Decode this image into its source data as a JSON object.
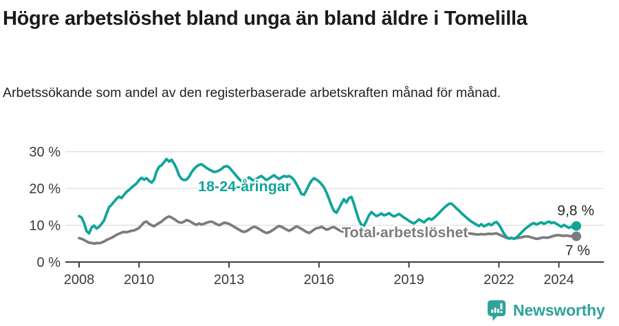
{
  "header": {
    "title": "Högre arbetslöshet bland unga än bland äldre i Tomelilla",
    "subtitle": "Arbetssökande som andel av den registerbaserade arbetskraften månad för månad."
  },
  "chart_data": {
    "type": "line",
    "x_unit": "month",
    "x_start": "2008-01",
    "x_end": "2024-08",
    "ylim": [
      0,
      30
    ],
    "grid": true,
    "y_ticks": [
      {
        "value": 0,
        "label": "0 %"
      },
      {
        "value": 10,
        "label": "10 %"
      },
      {
        "value": 20,
        "label": "20 %"
      },
      {
        "value": 30,
        "label": "30 %"
      }
    ],
    "x_ticks": [
      {
        "year": 2008,
        "label": "2008"
      },
      {
        "year": 2010,
        "label": "2010"
      },
      {
        "year": 2013,
        "label": "2013"
      },
      {
        "year": 2016,
        "label": "2016"
      },
      {
        "year": 2019,
        "label": "2019"
      },
      {
        "year": 2022,
        "label": "2022"
      },
      {
        "year": 2024,
        "label": "2024"
      }
    ],
    "series": [
      {
        "id": "total",
        "name": "Total arbetslöshet",
        "color": "#7c7c7c",
        "end_label": "7 %",
        "values": [
          6.5,
          6.3,
          6.0,
          5.6,
          5.3,
          5.2,
          5.0,
          5.2,
          5.1,
          5.3,
          5.6,
          6.0,
          6.3,
          6.6,
          7.0,
          7.4,
          7.7,
          8.0,
          8.2,
          8.1,
          8.3,
          8.5,
          8.6,
          8.9,
          9.3,
          10.0,
          10.8,
          11.0,
          10.4,
          10.0,
          9.7,
          10.2,
          10.6,
          11.0,
          11.6,
          12.1,
          12.4,
          12.1,
          11.7,
          11.2,
          10.8,
          10.7,
          11.0,
          11.4,
          11.2,
          10.8,
          10.4,
          10.1,
          10.5,
          10.2,
          10.4,
          10.7,
          10.9,
          11.0,
          10.7,
          10.3,
          10.0,
          10.3,
          10.7,
          10.6,
          10.4,
          10.0,
          9.6,
          9.2,
          8.8,
          8.4,
          8.2,
          8.4,
          8.8,
          9.3,
          9.6,
          9.4,
          9.0,
          8.6,
          8.2,
          7.9,
          8.1,
          8.5,
          8.9,
          9.4,
          9.8,
          9.6,
          9.2,
          8.8,
          8.5,
          8.8,
          9.3,
          9.7,
          9.4,
          9.0,
          8.6,
          8.2,
          7.9,
          8.3,
          8.8,
          9.2,
          9.3,
          9.6,
          9.2,
          8.8,
          9.0,
          9.4,
          9.5,
          9.1,
          8.7,
          8.4,
          8.2,
          8.0,
          7.9,
          7.7,
          7.9,
          8.1,
          7.9,
          7.7,
          7.5,
          7.4,
          7.6,
          7.8,
          7.7,
          7.6,
          7.8,
          7.6,
          7.5,
          7.6,
          7.8,
          7.7,
          7.5,
          7.4,
          7.5,
          7.7,
          7.6,
          7.5,
          7.4,
          7.3,
          7.4,
          7.6,
          7.5,
          7.4,
          7.5,
          7.6,
          7.7,
          7.8,
          7.7,
          7.8,
          8.0,
          8.2,
          8.5,
          8.8,
          9.0,
          8.9,
          8.7,
          8.5,
          8.3,
          8.1,
          8.0,
          7.9,
          7.8,
          7.7,
          7.6,
          7.5,
          7.5,
          7.6,
          7.5,
          7.6,
          7.7,
          7.6,
          7.7,
          7.8,
          7.5,
          7.2,
          6.9,
          6.6,
          6.4,
          6.5,
          6.4,
          6.5,
          6.6,
          6.7,
          6.9,
          7.0,
          6.9,
          6.7,
          6.5,
          6.3,
          6.4,
          6.6,
          6.7,
          6.6,
          6.7,
          6.9,
          7.1,
          7.3,
          7.3,
          7.2,
          7.1,
          7.2,
          7.1,
          7.0,
          6.9,
          7.0
        ]
      },
      {
        "id": "youth",
        "name": "18-24-åringar",
        "color": "#0fa59a",
        "end_label": "9,8 %",
        "values": [
          12.5,
          12.1,
          10.6,
          8.4,
          7.8,
          9.4,
          9.9,
          9.1,
          9.6,
          10.4,
          11.3,
          13.2,
          14.9,
          15.6,
          16.4,
          17.2,
          17.8,
          17.4,
          18.3,
          19.1,
          19.6,
          20.3,
          20.8,
          21.4,
          22.3,
          22.9,
          22.4,
          22.8,
          22.1,
          21.6,
          22.4,
          24.6,
          25.9,
          26.3,
          27.2,
          28.0,
          27.3,
          27.8,
          26.8,
          25.4,
          23.6,
          22.6,
          22.3,
          22.4,
          23.2,
          24.4,
          25.3,
          26.0,
          26.4,
          26.6,
          26.1,
          25.6,
          25.2,
          24.8,
          24.5,
          24.6,
          24.9,
          25.3,
          25.9,
          26.1,
          25.8,
          25.0,
          24.2,
          23.4,
          22.6,
          22.0,
          21.9,
          22.4,
          23.0,
          22.5,
          22.1,
          22.6,
          23.1,
          23.4,
          22.8,
          22.3,
          22.7,
          23.2,
          23.6,
          23.1,
          22.6,
          23.0,
          23.4,
          23.2,
          23.4,
          23.0,
          22.3,
          21.2,
          19.9,
          18.5,
          18.3,
          19.5,
          21.0,
          22.1,
          22.8,
          22.4,
          21.9,
          21.2,
          20.3,
          18.9,
          17.2,
          15.4,
          13.9,
          13.4,
          14.6,
          15.9,
          17.1,
          16.2,
          17.4,
          17.7,
          15.8,
          13.5,
          11.4,
          10.1,
          9.9,
          11.2,
          12.7,
          13.6,
          13.0,
          12.5,
          12.8,
          13.2,
          12.7,
          12.9,
          13.3,
          12.8,
          12.4,
          12.7,
          13.1,
          12.6,
          12.1,
          11.7,
          11.2,
          10.8,
          10.5,
          11.0,
          11.6,
          11.2,
          10.8,
          11.4,
          11.9,
          11.5,
          12.0,
          12.6,
          13.3,
          14.0,
          14.7,
          15.3,
          15.8,
          15.9,
          15.3,
          14.6,
          14.0,
          13.3,
          12.7,
          12.1,
          11.5,
          11.0,
          10.6,
          10.2,
          9.8,
          10.3,
          9.7,
          10.0,
          10.4,
          10.0,
          10.6,
          10.9,
          10.2,
          9.0,
          7.8,
          6.8,
          6.4,
          6.6,
          6.3,
          6.7,
          7.3,
          8.0,
          8.7,
          9.3,
          9.8,
          10.3,
          10.6,
          10.2,
          10.5,
          10.8,
          10.4,
          10.7,
          11.0,
          10.6,
          10.8,
          10.4,
          10.0,
          9.6,
          10.1,
          9.7,
          9.3,
          9.6,
          9.2,
          9.8
        ]
      }
    ]
  },
  "footer": {
    "brand": "Newsworthy",
    "brand_color": "#2fa29b"
  }
}
